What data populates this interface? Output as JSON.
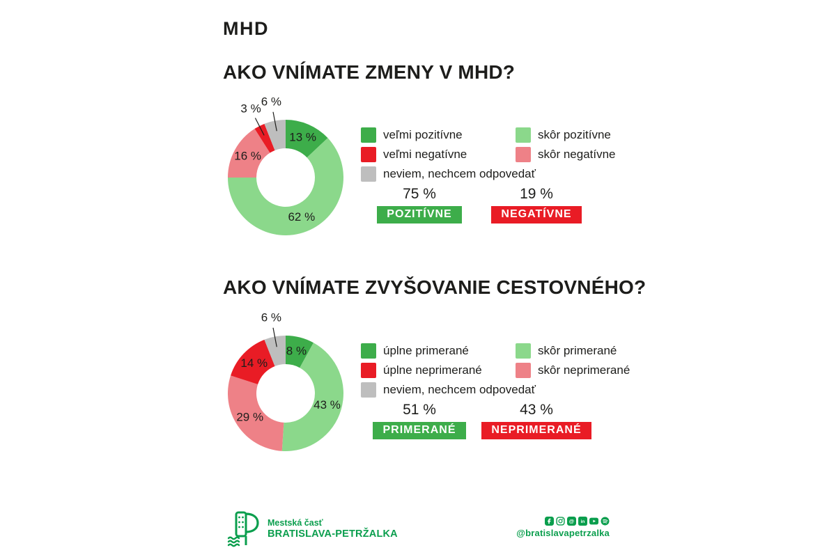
{
  "page": {
    "title": "MHD"
  },
  "sections": [
    {
      "heading": "AKO VNÍMATE ZMENY V MHD?",
      "summary": [
        {
          "percent": "75 %",
          "label": "POZITÍVNE",
          "color": "#3dad4a"
        },
        {
          "percent": "19 %",
          "label": "NEGATÍVNE",
          "color": "#e91c25"
        }
      ]
    },
    {
      "heading": "AKO VNÍMATE ZVYŠOVANIE CESTOVNÉHO?",
      "summary": [
        {
          "percent": "51 %",
          "label": "PRIMERANÉ",
          "color": "#3dad4a"
        },
        {
          "percent": "43 %",
          "label": "NEPRIMERANÉ",
          "color": "#e91c25"
        }
      ]
    }
  ],
  "chart_data": [
    {
      "type": "pie",
      "variant": "donut",
      "title": "AKO VNÍMATE ZMENY V MHD?",
      "unit": "%",
      "start_angle_deg": 0,
      "direction": "clockwise",
      "slices": [
        {
          "label": "veľmi pozitívne",
          "value": 13,
          "display": "13 %",
          "color": "#3dad4a",
          "label_placement": "inside"
        },
        {
          "label": "skôr pozitívne",
          "value": 62,
          "display": "62 %",
          "color": "#8bd88b",
          "label_placement": "inside"
        },
        {
          "label": "skôr negatívne",
          "value": 16,
          "display": "16 %",
          "color": "#ee8187",
          "label_placement": "inside"
        },
        {
          "label": "veľmi negatívne",
          "value": 3,
          "display": "3 %",
          "color": "#e91c25",
          "label_placement": "outside"
        },
        {
          "label": "neviem, nechcem odpovedať",
          "value": 6,
          "display": "6 %",
          "color": "#bebebe",
          "label_placement": "outside"
        }
      ],
      "legend_position": "right",
      "legend": [
        {
          "label": "veľmi pozitívne",
          "color": "#3dad4a"
        },
        {
          "label": "skôr pozitívne",
          "color": "#8bd88b"
        },
        {
          "label": "veľmi negatívne",
          "color": "#e91c25"
        },
        {
          "label": "skôr negatívne",
          "color": "#ee8187"
        },
        {
          "label": "neviem, nechcem odpovedať",
          "color": "#bebebe"
        }
      ]
    },
    {
      "type": "pie",
      "variant": "donut",
      "title": "AKO VNÍMATE ZVYŠOVANIE CESTOVNÉHO?",
      "unit": "%",
      "start_angle_deg": 0,
      "direction": "clockwise",
      "slices": [
        {
          "label": "úplne primerané",
          "value": 8,
          "display": "8 %",
          "color": "#3dad4a",
          "label_placement": "inside"
        },
        {
          "label": "skôr primerané",
          "value": 43,
          "display": "43 %",
          "color": "#8bd88b",
          "label_placement": "inside"
        },
        {
          "label": "skôr neprimerané",
          "value": 29,
          "display": "29 %",
          "color": "#ee8187",
          "label_placement": "inside"
        },
        {
          "label": "úplne neprimerané",
          "value": 14,
          "display": "14 %",
          "color": "#e91c25",
          "label_placement": "inside"
        },
        {
          "label": "neviem, nechcem odpovedať",
          "value": 6,
          "display": "6 %",
          "color": "#bebebe",
          "label_placement": "outside"
        }
      ],
      "legend_position": "right",
      "legend": [
        {
          "label": "úplne primerané",
          "color": "#3dad4a"
        },
        {
          "label": "skôr primerané",
          "color": "#8bd88b"
        },
        {
          "label": "úplne neprimerané",
          "color": "#e91c25"
        },
        {
          "label": "skôr neprimerané",
          "color": "#ee8187"
        },
        {
          "label": "neviem, nechcem odpovedať",
          "color": "#bebebe"
        }
      ]
    }
  ],
  "footer": {
    "org_line1": "Mestská časť",
    "org_line2": "BRATISLAVA-PETRŽALKA",
    "handle": "@bratislavapetrzalka",
    "social": [
      "facebook",
      "instagram",
      "threads",
      "linkedin",
      "youtube",
      "spotify"
    ],
    "brand_color": "#0a9e4d"
  },
  "colors": {
    "text": "#1d1d1b",
    "background": "#ffffff"
  }
}
